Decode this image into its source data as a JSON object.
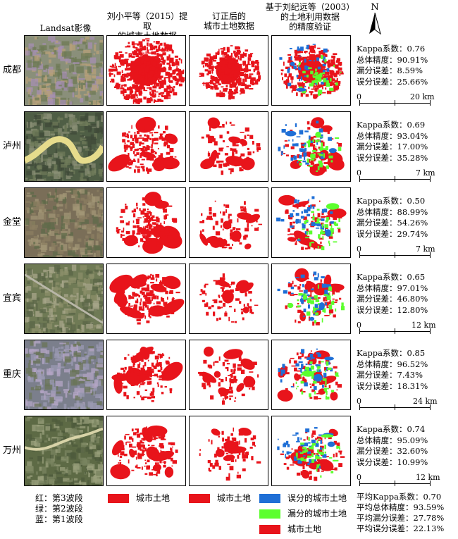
{
  "headers": {
    "landsat": "Landsat影像",
    "col2": [
      "刘小平等（2015）提取",
      "的城市土地数据"
    ],
    "col3": [
      "订正后的",
      "城市土地数据"
    ],
    "col4": [
      "基于刘纪远等（2003）",
      "的土地利用数据",
      "的精度验证"
    ]
  },
  "north_label": "N",
  "colors": {
    "urban": "#e8141b",
    "error_commission": "#1f6fd6",
    "error_omission": "#5cff2e",
    "frame": "#000000"
  },
  "rows": [
    {
      "city": "成都",
      "stats": {
        "kappa": "Kappa系数：0.76",
        "accuracy": "总体精度：90.91%",
        "omission": "漏分误差：8.59%",
        "commission": "误分误差：25.66%"
      },
      "scale": {
        "zero": "0",
        "dist": "20 km"
      }
    },
    {
      "city": "泸州",
      "stats": {
        "kappa": "Kappa系数：0.69",
        "accuracy": "总体精度：93.04%",
        "omission": "漏分误差：17.00%",
        "commission": "误分误差：35.28%"
      },
      "scale": {
        "zero": "0",
        "dist": "7 km"
      }
    },
    {
      "city": "金堂",
      "stats": {
        "kappa": "Kappa系数：0.50",
        "accuracy": "总体精度：88.99%",
        "omission": "漏分误差：54.26%",
        "commission": "误分误差：29.74%"
      },
      "scale": {
        "zero": "0",
        "dist": "7 km"
      }
    },
    {
      "city": "宜宾",
      "stats": {
        "kappa": "Kappa系数：0.65",
        "accuracy": "总体精度：97.01%",
        "omission": "漏分误差：46.80%",
        "commission": "误分误差：12.80%"
      },
      "scale": {
        "zero": "0",
        "dist": "12 km"
      }
    },
    {
      "city": "重庆",
      "stats": {
        "kappa": "Kappa系数：0.85",
        "accuracy": "总体精度：96.52%",
        "omission": "漏分误差：7.43%",
        "commission": "误分误差：18.31%"
      },
      "scale": {
        "zero": "0",
        "dist": "24 km"
      }
    },
    {
      "city": "万州",
      "stats": {
        "kappa": "Kappa系数：0.74",
        "accuracy": "总体精度：95.09%",
        "omission": "漏分误差：32.60%",
        "commission": "误分误差：10.99%"
      },
      "scale": {
        "zero": "0",
        "dist": "12 km"
      }
    }
  ],
  "legend": {
    "bands": [
      "红：第3波段",
      "绿：第2波段",
      "蓝：第1波段"
    ],
    "col2_label": "城市土地",
    "col3_label": "城市土地",
    "col4_items": [
      "误分的城市土地",
      "漏分的城市土地",
      "城市土地"
    ]
  },
  "summary": {
    "kappa": "平均Kappa系数：0.70",
    "accuracy": "平均总体精度：93.59%",
    "omission": "平均漏分误差：27.78%",
    "commission": "平均误分误差：22.13%"
  }
}
